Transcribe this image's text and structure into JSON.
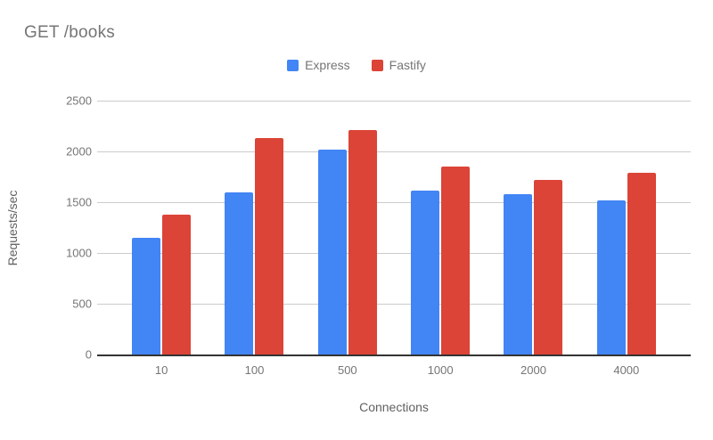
{
  "title": "GET /books",
  "chart_data": {
    "type": "bar",
    "title": "GET /books",
    "categories": [
      "10",
      "100",
      "500",
      "1000",
      "2000",
      "4000"
    ],
    "series": [
      {
        "name": "Express",
        "color": "#4285F4",
        "values": [
          1150,
          1600,
          2015,
          1610,
          1575,
          1515
        ]
      },
      {
        "name": "Fastify",
        "color": "#DB4437",
        "values": [
          1375,
          2135,
          2210,
          1855,
          1720,
          1790
        ]
      }
    ],
    "xlabel": "Connections",
    "ylabel": "Requests/sec",
    "ylim": [
      0,
      2500
    ],
    "ytick_step": 500,
    "grid": true,
    "legend_position": "top"
  },
  "colors": {
    "title_text": "#757575",
    "axis_title_text": "#616161",
    "tick_text": "#757575",
    "gridline": "#cccccc",
    "baseline": "#333333",
    "background": "#ffffff"
  }
}
